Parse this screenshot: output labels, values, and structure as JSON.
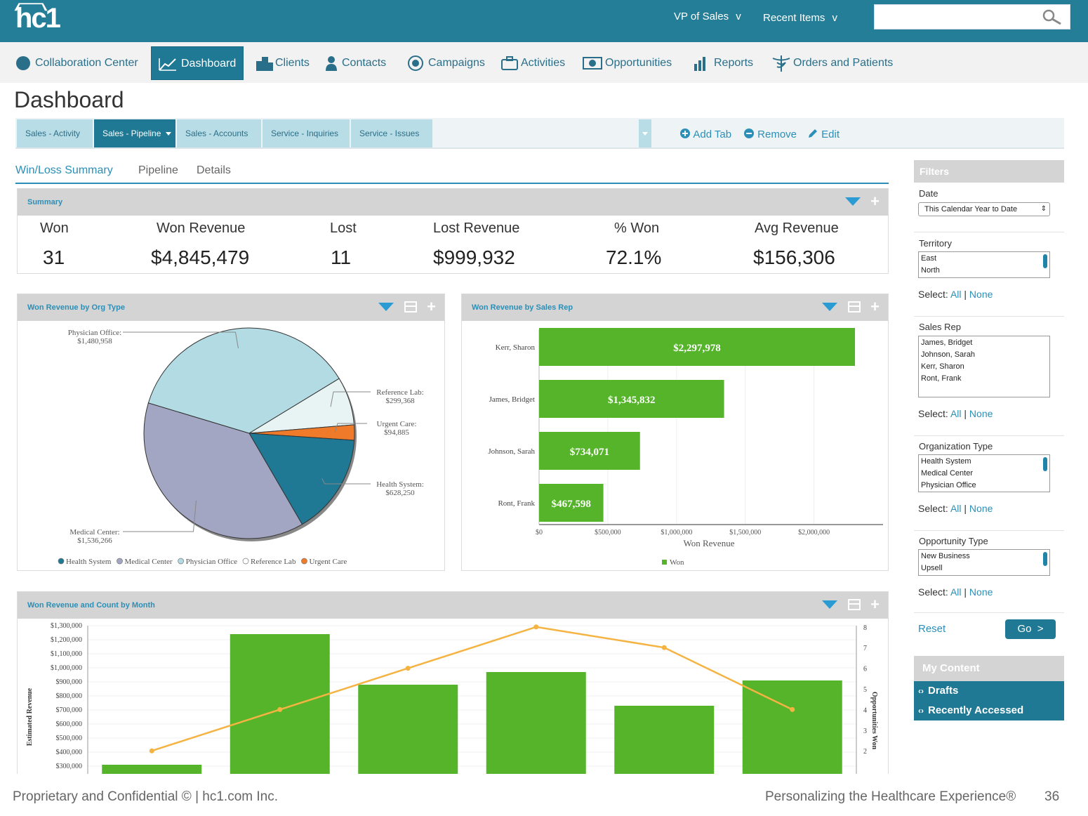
{
  "header": {
    "logo": "hc1",
    "role_menu": "VP of Sales",
    "recent_items": "Recent Items",
    "menu_caret": "v",
    "search": {
      "value": "",
      "placeholder": ""
    }
  },
  "nav": {
    "items": [
      {
        "label": "Collaboration Center"
      },
      {
        "label": "Dashboard"
      },
      {
        "label": "Clients"
      },
      {
        "label": "Contacts"
      },
      {
        "label": "Campaigns"
      },
      {
        "label": "Activities"
      },
      {
        "label": "Opportunities"
      },
      {
        "label": "Reports"
      },
      {
        "label": "Orders and Patients"
      }
    ]
  },
  "page": {
    "title": "Dashboard"
  },
  "dashboard_tabs": [
    "Sales - Activity",
    "Sales - Pipeline",
    "Sales - Accounts",
    "Service - Inquiries",
    "Service - Issues"
  ],
  "tab_actions": {
    "add": "Add Tab",
    "remove": "Remove",
    "edit": "Edit"
  },
  "subtabs": [
    "Win/Loss Summary",
    "Pipeline",
    "Details"
  ],
  "summary": {
    "title": "Summary",
    "metrics": [
      {
        "label": "Won",
        "value": "31"
      },
      {
        "label": "Won Revenue",
        "value": "$4,845,479"
      },
      {
        "label": "Lost",
        "value": "11"
      },
      {
        "label": "Lost Revenue",
        "value": "$999,932"
      },
      {
        "label": "% Won",
        "value": "72.1%"
      },
      {
        "label": "Avg Revenue",
        "value": "$156,306"
      }
    ]
  },
  "panels": {
    "org_type": "Won Revenue by Org Type",
    "sales_rep": "Won Revenue by Sales Rep",
    "by_month": "Won Revenue and Count by Month"
  },
  "colors": {
    "brand": "#257e97",
    "accent": "#2b8fb7",
    "bar_green": "#56b42b",
    "line_orange": "#f5b342"
  },
  "chart_data": [
    {
      "type": "pie",
      "title": "Won Revenue by Org Type",
      "slices": [
        {
          "name": "Physician Office",
          "label": "Physician Office:",
          "value_label": "$1,480,958",
          "value": 1480958,
          "color": "#b2dbe3"
        },
        {
          "name": "Reference Lab",
          "label": "Reference Lab:",
          "value_label": "$299,368",
          "value": 299368,
          "color": "#e8f3f3"
        },
        {
          "name": "Urgent Care",
          "label": "Urgent Care:",
          "value_label": "$94,885",
          "value": 94885,
          "color": "#ee7a2a"
        },
        {
          "name": "Health System",
          "label": "Health System:",
          "value_label": "$628,250",
          "value": 628250,
          "color": "#1f7994"
        },
        {
          "name": "Medical Center",
          "label": "Medical Center:",
          "value_label": "$1,536,266",
          "value": 1536266,
          "color": "#a2a6c2"
        }
      ],
      "legend": [
        "Health System",
        "Medical Center",
        "Physician Office",
        "Reference Lab",
        "Urgent Care"
      ],
      "legend_position": "bottom"
    },
    {
      "type": "bar",
      "orientation": "horizontal",
      "title": "Won Revenue by Sales Rep",
      "categories": [
        "Kerr, Sharon",
        "James, Bridget",
        "Johnson, Sarah",
        "Ront, Frank"
      ],
      "series": [
        {
          "name": "Won",
          "values": [
            2297978,
            1345832,
            734071,
            467598
          ]
        }
      ],
      "data_labels": [
        "$2,297,978",
        "$1,345,832",
        "$734,071",
        "$467,598"
      ],
      "xlabel": "Won Revenue",
      "xlim": [
        0,
        2400000
      ],
      "x_ticks": [
        0,
        500000,
        1000000,
        1500000,
        2000000
      ],
      "x_tick_labels": [
        "$0",
        "$500,000",
        "$1,000,000",
        "$1,500,000",
        "$2,000,000"
      ],
      "legend_position": "bottom",
      "grid": true
    },
    {
      "type": "bar",
      "title": "Won Revenue and Count by Month",
      "ylabel": "Estimated Revenue",
      "y2label": "Opportunities Won",
      "ylim": [
        300000,
        1300000
      ],
      "y_ticks": [
        "$1,300,000",
        "$1,200,000",
        "$1,100,000",
        "$1,000,000",
        "$900,000",
        "$800,000",
        "$700,000",
        "$600,000",
        "$500,000",
        "$400,000",
        "$300,000"
      ],
      "y_tick_values": [
        1300000,
        1200000,
        1100000,
        1000000,
        900000,
        800000,
        700000,
        600000,
        500000,
        400000,
        300000
      ],
      "y2lim": [
        1.6,
        8.4
      ],
      "y2_ticks": [
        8,
        7,
        6,
        5,
        4,
        3,
        2
      ],
      "bar_values": [
        310000,
        1240000,
        880000,
        970000,
        730000,
        910000
      ],
      "line_values": [
        2,
        4,
        6,
        8,
        7,
        4
      ],
      "grid": true
    }
  ],
  "filters": {
    "title": "Filters",
    "date_label": "Date",
    "date_value": "This Calendar Year to Date",
    "territory_label": "Territory",
    "territory_options": [
      "East",
      "North"
    ],
    "sales_rep_label": "Sales Rep",
    "sales_rep_options": [
      "James, Bridget",
      "Johnson, Sarah",
      "Kerr, Sharon",
      "Ront, Frank"
    ],
    "org_type_label": "Organization Type",
    "org_type_options": [
      "Health System",
      "Medical Center",
      "Physician Office"
    ],
    "opp_type_label": "Opportunity Type",
    "opp_type_options": [
      "New Business",
      "Upsell"
    ],
    "select_label": "Select:",
    "select_all": "All",
    "select_sep": "|",
    "select_none": "None",
    "reset": "Reset",
    "go": "Go"
  },
  "my_content": {
    "title": "My Content",
    "items": [
      "Drafts",
      "Recently Accessed"
    ]
  },
  "footer": {
    "left": "Proprietary and Confidential © | hc1.com Inc.",
    "right": "Personalizing the Healthcare Experience®",
    "page": "36"
  }
}
